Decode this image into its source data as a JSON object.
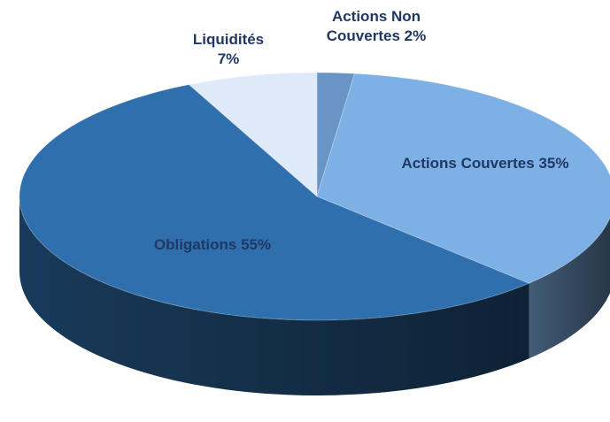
{
  "chart_data": {
    "type": "pie",
    "categories": [
      "Actions Non Couvertes",
      "Actions Couvertes",
      "Obligations",
      "Liquidités"
    ],
    "values": [
      2,
      35,
      55,
      7
    ],
    "value_labels": [
      "2%",
      "35%",
      "55%",
      "7%"
    ],
    "colors": [
      "#6a94c4",
      "#7db0e4",
      "#2f6fad",
      "#deeaf8"
    ]
  }
}
